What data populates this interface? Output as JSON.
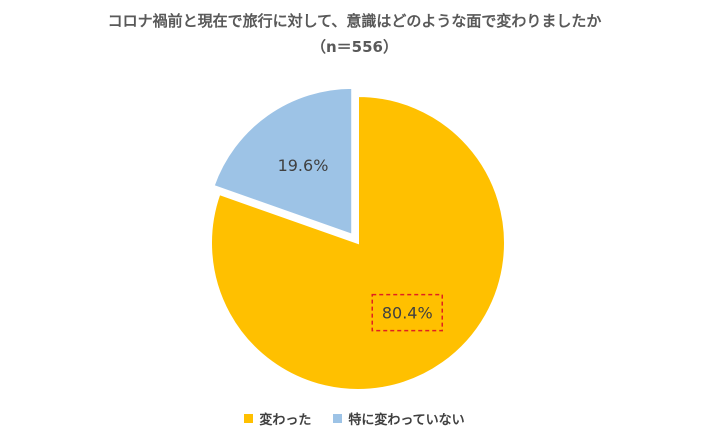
{
  "chart_data": {
    "type": "pie",
    "title": "コロナ禍前と現在で旅行に対して、意識はどのような面で変わりましたか",
    "subtitle": "（n＝556）",
    "slices": [
      {
        "name": "変わった",
        "value": 80.4,
        "label": "80.4%",
        "color": "#FFC000"
      },
      {
        "name": "特に変わっていない",
        "value": 19.6,
        "label": "19.6%",
        "color": "#9DC3E6"
      }
    ],
    "exploded_slice": "特に変わっていない",
    "highlighted_label": "80.4%",
    "legend_position": "bottom"
  }
}
